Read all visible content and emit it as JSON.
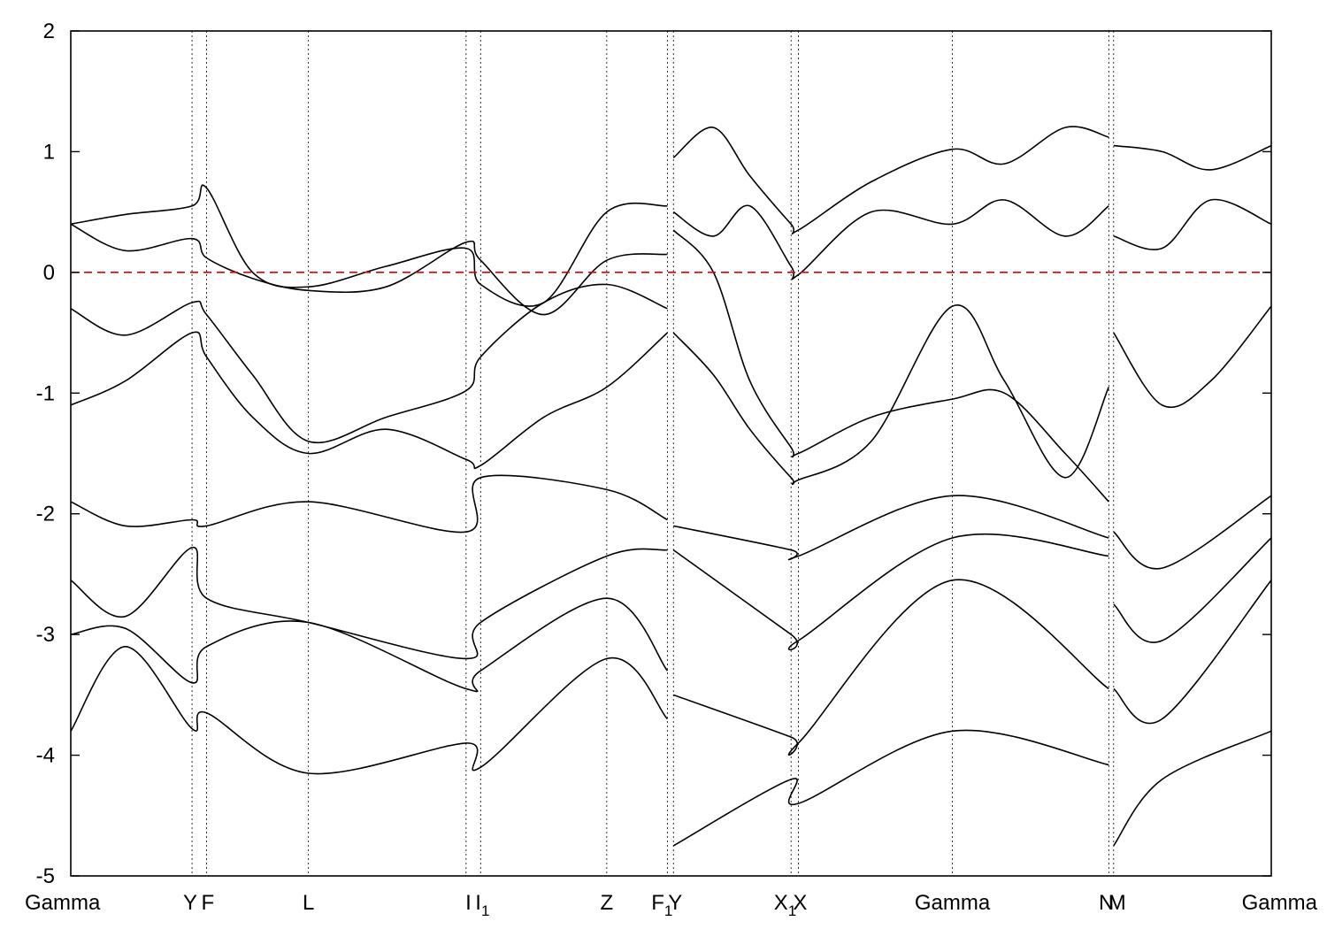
{
  "chart_data": {
    "type": "line",
    "title": "",
    "xlabel": "",
    "ylabel": "",
    "ylim": [
      -5,
      2
    ],
    "yticks": [
      -5,
      -4,
      -3,
      -2,
      -1,
      0,
      1,
      2
    ],
    "grid": false,
    "legend": "none",
    "fermi_level": {
      "value": 0,
      "color": "#e00000",
      "style": "dashed"
    },
    "band_color": "#000000",
    "kpoints": [
      {
        "pos": 0,
        "label": "Gamma",
        "sub": ""
      },
      {
        "pos": 1.0,
        "label": "Y",
        "sub": ""
      },
      {
        "pos": 1.12,
        "label": "F",
        "sub": ""
      },
      {
        "pos": 1.96,
        "label": "L",
        "sub": ""
      },
      {
        "pos": 3.26,
        "label": "I",
        "sub": ""
      },
      {
        "pos": 3.38,
        "label": "I",
        "sub": "1"
      },
      {
        "pos": 4.42,
        "label": "Z",
        "sub": ""
      },
      {
        "pos": 4.92,
        "label": "F",
        "sub": "1"
      },
      {
        "pos": 4.97,
        "label": "Y",
        "sub": ""
      },
      {
        "pos": 5.94,
        "label": "X",
        "sub": "1"
      },
      {
        "pos": 6.0,
        "label": "X",
        "sub": ""
      },
      {
        "pos": 7.27,
        "label": "Gamma",
        "sub": ""
      },
      {
        "pos": 8.56,
        "label": "N",
        "sub": ""
      },
      {
        "pos": 8.6,
        "label": "M",
        "sub": ""
      },
      {
        "pos": 9.9,
        "label": "Gamma",
        "sub": ""
      }
    ],
    "xlim": [
      0,
      9.9
    ],
    "series": [
      {
        "x": [
          0,
          0.45,
          1.0,
          1.12,
          1.5,
          1.96,
          2.6,
          3.26,
          3.38,
          3.9,
          4.42,
          4.92
        ],
        "y": [
          -0.3,
          -0.52,
          -0.25,
          -0.35,
          -0.85,
          -1.4,
          -1.2,
          -0.98,
          -0.7,
          -0.25,
          -0.1,
          -0.3
        ]
      },
      {
        "x": [
          0,
          0.45,
          1.0,
          1.12,
          1.5,
          1.96,
          2.6,
          3.26,
          3.38,
          3.9,
          4.42,
          4.92
        ],
        "y": [
          -1.1,
          -0.9,
          -0.5,
          -0.7,
          -1.2,
          -1.5,
          -1.3,
          -1.55,
          -1.6,
          -1.2,
          -0.95,
          -0.5
        ]
      },
      {
        "x": [
          0,
          0.45,
          1.0,
          1.12,
          1.5,
          1.96,
          2.6,
          3.26,
          3.38,
          3.9,
          4.42,
          4.92
        ],
        "y": [
          0.4,
          0.18,
          0.28,
          0.12,
          -0.05,
          -0.15,
          -0.12,
          0.25,
          0.1,
          -0.35,
          0.1,
          0.15
        ]
      },
      {
        "x": [
          0,
          0.45,
          1.0,
          1.12,
          1.5,
          1.96,
          2.6,
          3.26,
          3.38,
          3.9,
          4.42,
          4.92
        ],
        "y": [
          0.4,
          0.48,
          0.55,
          0.7,
          0.0,
          -0.12,
          0.05,
          0.2,
          -0.1,
          -0.25,
          0.5,
          0.55
        ]
      },
      {
        "x": [
          4.97,
          5.3,
          5.6,
          5.94,
          6.0,
          6.6,
          7.27,
          7.7,
          8.2,
          8.56
        ],
        "y": [
          0.35,
          0.0,
          -0.9,
          -1.45,
          -1.5,
          -1.2,
          -1.05,
          -1.0,
          -1.5,
          -1.9
        ]
      },
      {
        "x": [
          4.97,
          5.3,
          5.6,
          5.94,
          6.0,
          6.6,
          7.27,
          7.7,
          8.2,
          8.56
        ],
        "y": [
          -0.5,
          -0.85,
          -1.3,
          -1.7,
          -1.72,
          -1.4,
          -0.28,
          -0.9,
          -1.7,
          -0.95
        ]
      },
      {
        "x": [
          4.97,
          5.3,
          5.6,
          5.94,
          6.0,
          6.6,
          7.27,
          7.7,
          8.2,
          8.56
        ],
        "y": [
          0.5,
          0.3,
          0.55,
          0.05,
          -0.02,
          0.5,
          0.4,
          0.6,
          0.3,
          0.55
        ]
      },
      {
        "x": [
          4.97,
          5.3,
          5.6,
          5.94,
          6.0,
          6.6,
          7.27,
          7.7,
          8.2,
          8.56
        ],
        "y": [
          0.95,
          1.2,
          0.8,
          0.4,
          0.35,
          0.75,
          1.02,
          0.9,
          1.2,
          1.12
        ]
      },
      {
        "x": [
          8.6,
          9.0,
          9.4,
          9.9
        ],
        "y": [
          -0.5,
          -1.1,
          -0.9,
          -0.28
        ]
      },
      {
        "x": [
          8.6,
          9.0,
          9.4,
          9.9
        ],
        "y": [
          0.3,
          0.2,
          0.6,
          0.4
        ]
      },
      {
        "x": [
          8.6,
          9.0,
          9.4,
          9.9
        ],
        "y": [
          1.05,
          1.0,
          0.85,
          1.05
        ]
      },
      {
        "x": [
          0,
          0.45,
          1.0,
          1.12,
          1.96,
          3.26,
          3.38,
          4.42,
          4.92
        ],
        "y": [
          -1.9,
          -2.1,
          -2.05,
          -2.1,
          -1.9,
          -2.15,
          -1.7,
          -1.8,
          -2.05
        ]
      },
      {
        "x": [
          4.97,
          5.94,
          6.0,
          7.27,
          8.56
        ],
        "y": [
          -2.1,
          -2.3,
          -2.35,
          -1.85,
          -2.2
        ]
      },
      {
        "x": [
          8.6,
          9.0,
          9.9
        ],
        "y": [
          -2.15,
          -2.45,
          -1.85
        ]
      },
      {
        "x": [
          0,
          0.45,
          1.0,
          1.12,
          1.96,
          3.26,
          3.38,
          4.42,
          4.92
        ],
        "y": [
          -2.55,
          -2.85,
          -2.28,
          -2.7,
          -2.9,
          -3.2,
          -2.9,
          -2.35,
          -2.3
        ]
      },
      {
        "x": [
          4.97,
          5.94,
          6.0,
          7.27,
          8.56
        ],
        "y": [
          -2.3,
          -3.0,
          -3.05,
          -2.2,
          -2.35
        ]
      },
      {
        "x": [
          8.6,
          9.0,
          9.9
        ],
        "y": [
          -2.75,
          -3.05,
          -2.2
        ]
      },
      {
        "x": [
          0,
          0.45,
          1.0,
          1.12,
          1.96,
          3.26,
          3.38,
          4.42,
          4.92
        ],
        "y": [
          -3.0,
          -2.95,
          -3.4,
          -3.1,
          -2.9,
          -3.45,
          -3.3,
          -2.7,
          -3.3
        ]
      },
      {
        "x": [
          4.97,
          5.94,
          6.0,
          7.27,
          8.56
        ],
        "y": [
          -3.5,
          -3.85,
          -3.9,
          -2.55,
          -3.45
        ]
      },
      {
        "x": [
          8.6,
          9.0,
          9.9
        ],
        "y": [
          -3.45,
          -3.7,
          -2.55
        ]
      },
      {
        "x": [
          0,
          0.45,
          1.0,
          1.12,
          1.96,
          3.26,
          3.38,
          4.42,
          4.92
        ],
        "y": [
          -3.8,
          -3.1,
          -3.78,
          -3.65,
          -4.15,
          -3.9,
          -4.1,
          -3.2,
          -3.7
        ]
      },
      {
        "x": [
          4.97,
          5.94,
          6.0,
          7.27,
          8.56
        ],
        "y": [
          -4.75,
          -4.2,
          -4.4,
          -3.8,
          -4.08
        ]
      },
      {
        "x": [
          8.6,
          9.0,
          9.9
        ],
        "y": [
          -4.75,
          -4.2,
          -3.8
        ]
      }
    ]
  }
}
